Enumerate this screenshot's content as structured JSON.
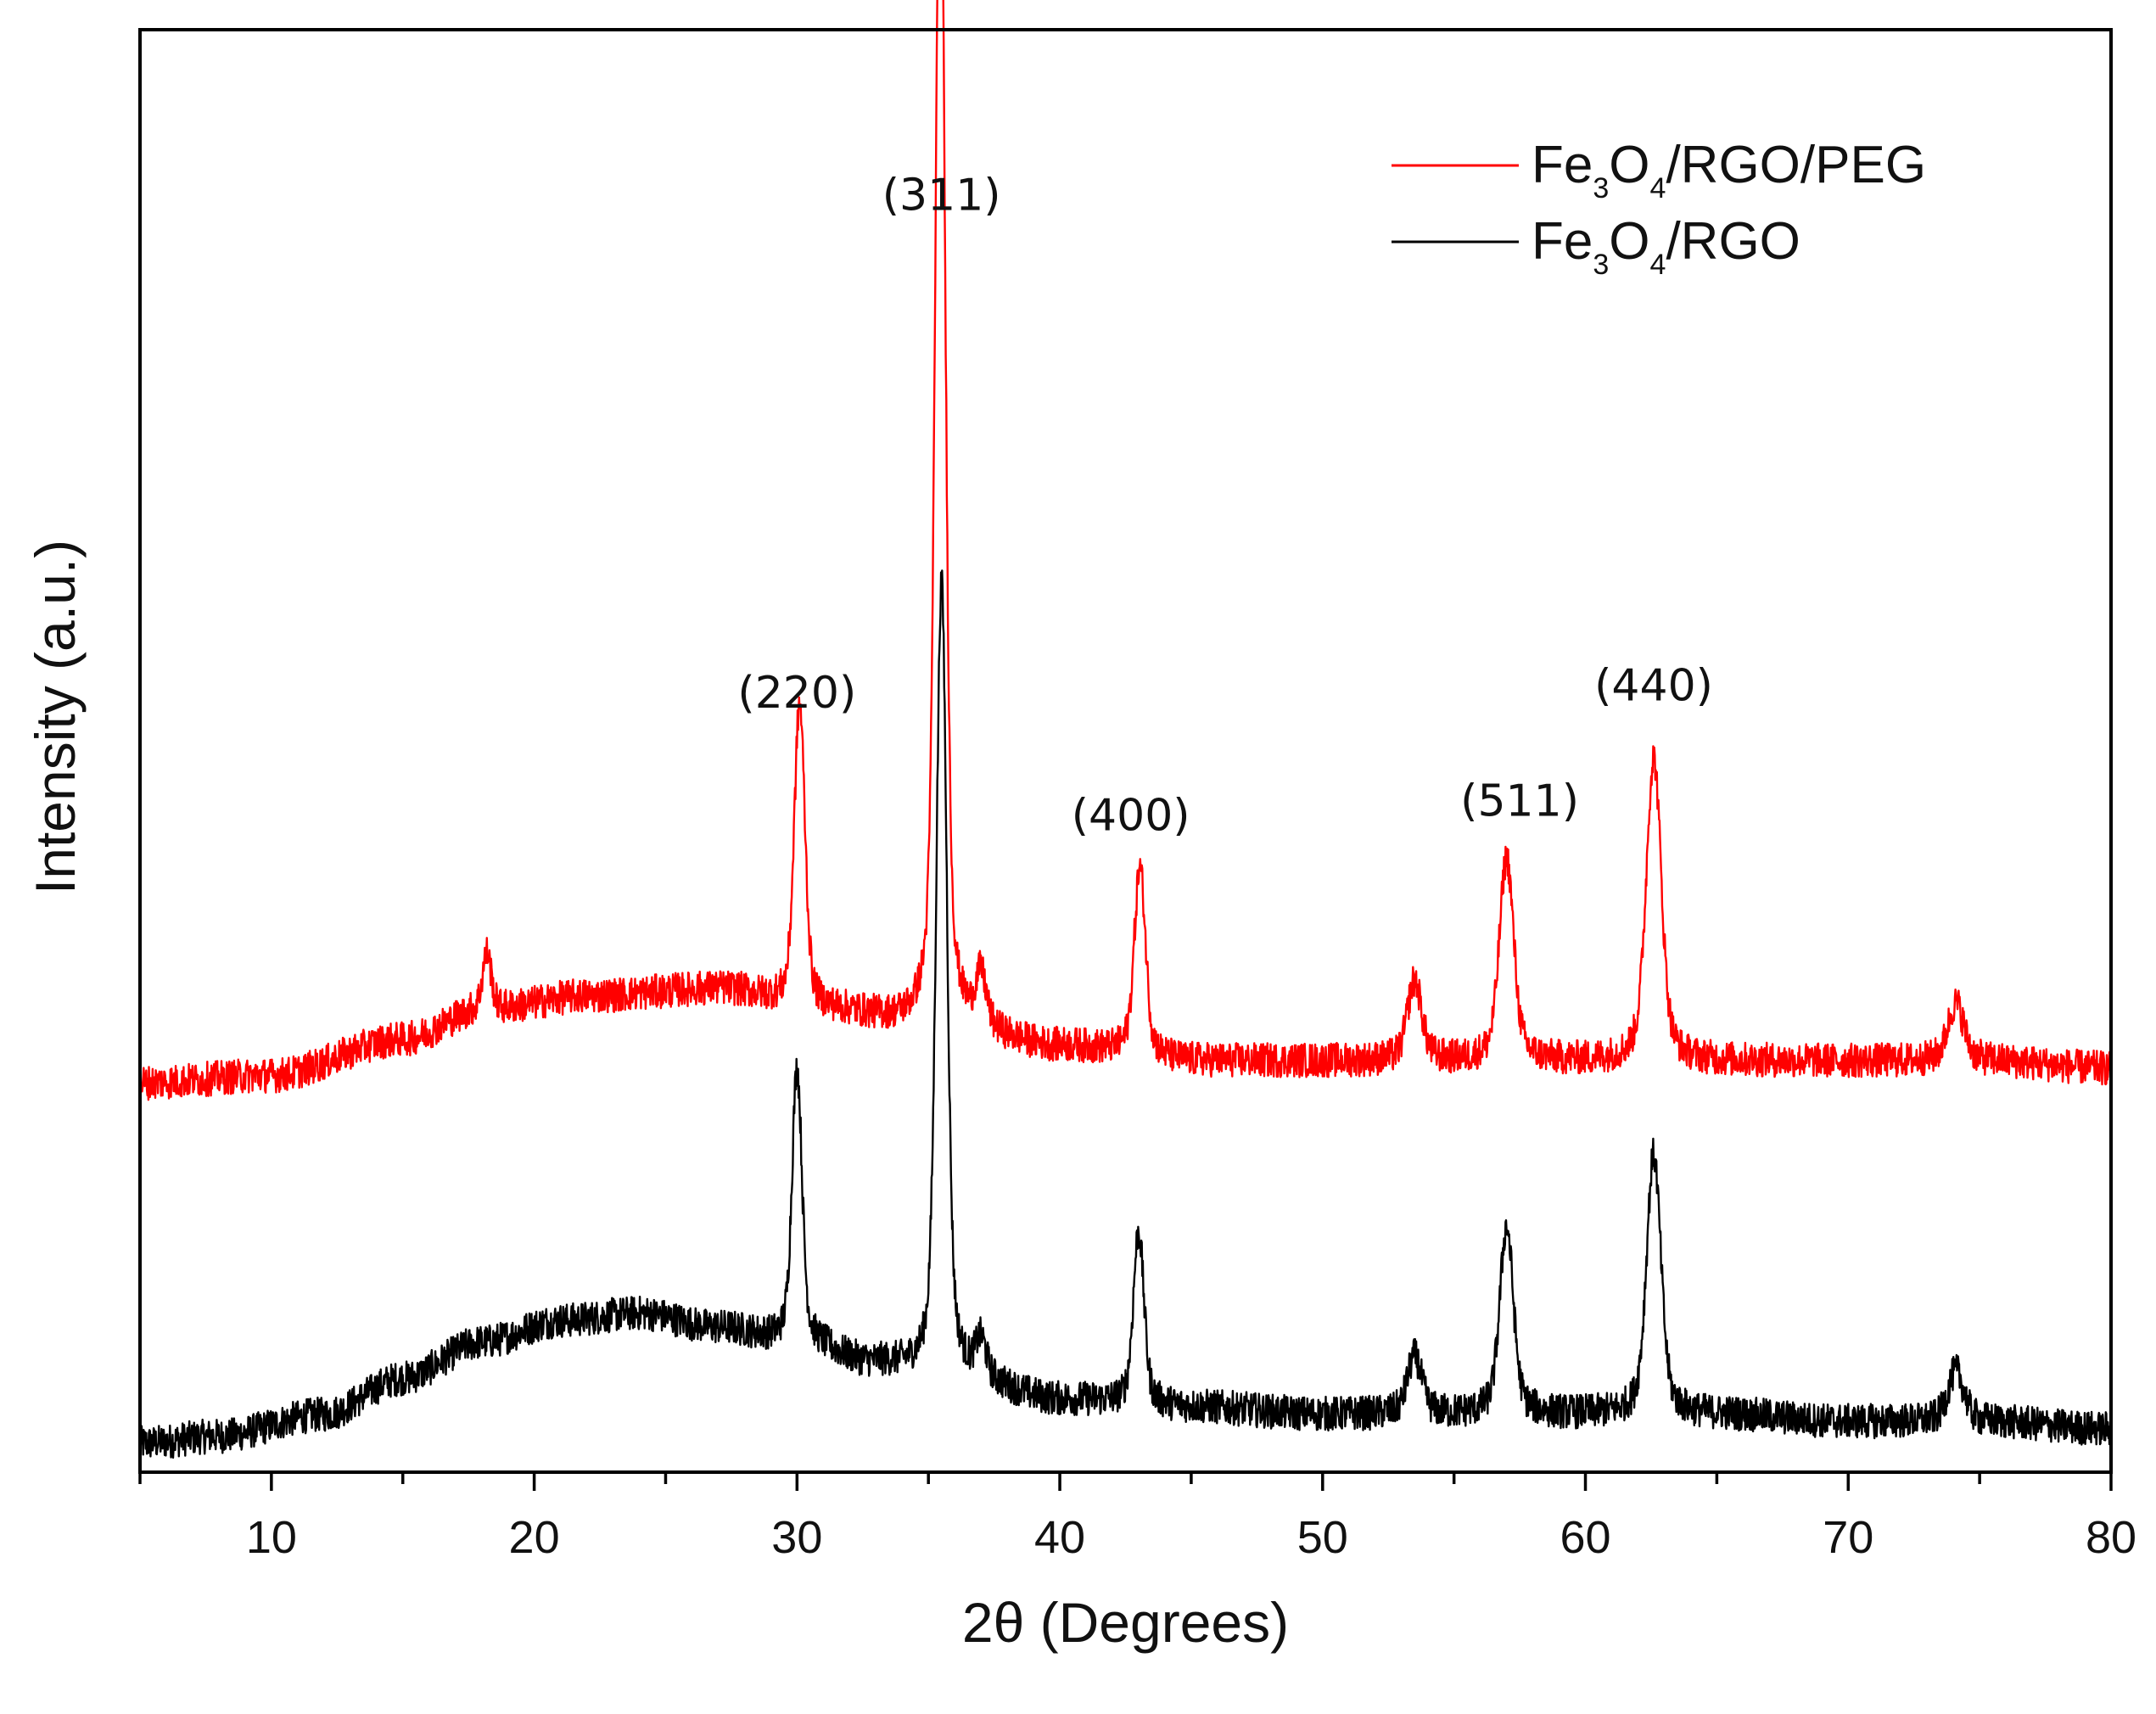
{
  "chart_data": {
    "type": "line",
    "title": "",
    "xlabel": "2θ (Degrees)",
    "ylabel": "Intensity (a.u.)",
    "xlim": [
      5,
      80
    ],
    "ylim": [
      0,
      1
    ],
    "x_ticks": [
      10,
      20,
      30,
      40,
      50,
      60,
      70,
      80
    ],
    "y_ticks_visible": false,
    "grid": false,
    "legend_position": "top-right",
    "series": [
      {
        "name": "Fe3O4/RGO/PEG",
        "legend": {
          "base": "Fe",
          "sub1": "3",
          "mid": "O",
          "sub2": "4",
          "rest": "/RGO/PEG"
        },
        "color": "#ff0000",
        "baseline_points": [
          [
            5,
            0.27
          ],
          [
            10,
            0.275
          ],
          [
            15,
            0.3
          ],
          [
            18,
            0.32
          ],
          [
            22,
            0.33
          ],
          [
            27,
            0.335
          ],
          [
            31,
            0.32
          ],
          [
            35,
            0.31
          ],
          [
            40,
            0.295
          ],
          [
            45,
            0.285
          ],
          [
            50,
            0.285
          ],
          [
            55,
            0.285
          ],
          [
            60,
            0.285
          ],
          [
            65,
            0.285
          ],
          [
            70,
            0.285
          ],
          [
            75,
            0.285
          ],
          [
            80,
            0.28
          ]
        ],
        "peaks": [
          {
            "x": 18.2,
            "height": 0.04,
            "width": 0.25
          },
          {
            "x": 30.1,
            "height": 0.21,
            "width": 0.3
          },
          {
            "x": 35.45,
            "height": 0.85,
            "width": 0.28
          },
          {
            "x": 37.0,
            "height": 0.035,
            "width": 0.3
          },
          {
            "x": 43.05,
            "height": 0.13,
            "width": 0.32
          },
          {
            "x": 53.5,
            "height": 0.055,
            "width": 0.4
          },
          {
            "x": 57.0,
            "height": 0.14,
            "width": 0.4
          },
          {
            "x": 62.6,
            "height": 0.21,
            "width": 0.42
          },
          {
            "x": 74.1,
            "height": 0.04,
            "width": 0.45
          }
        ],
        "noise_amplitude": 0.012
      },
      {
        "name": "Fe3O4/RGO",
        "legend": {
          "base": "Fe",
          "sub1": "3",
          "mid": "O",
          "sub2": "4",
          "rest": "/RGO"
        },
        "color": "#000000",
        "baseline_points": [
          [
            5,
            0.02
          ],
          [
            8,
            0.025
          ],
          [
            12,
            0.04
          ],
          [
            15,
            0.065
          ],
          [
            18,
            0.09
          ],
          [
            21,
            0.105
          ],
          [
            24,
            0.11
          ],
          [
            27,
            0.1
          ],
          [
            30,
            0.09
          ],
          [
            33,
            0.075
          ],
          [
            36,
            0.065
          ],
          [
            40,
            0.05
          ],
          [
            45,
            0.045
          ],
          [
            50,
            0.04
          ],
          [
            55,
            0.04
          ],
          [
            60,
            0.04
          ],
          [
            65,
            0.04
          ],
          [
            70,
            0.035
          ],
          [
            75,
            0.035
          ],
          [
            80,
            0.03
          ]
        ],
        "peaks": [
          {
            "x": 30.0,
            "height": 0.19,
            "width": 0.28
          },
          {
            "x": 35.5,
            "height": 0.55,
            "width": 0.3
          },
          {
            "x": 37.0,
            "height": 0.025,
            "width": 0.3
          },
          {
            "x": 43.0,
            "height": 0.12,
            "width": 0.3
          },
          {
            "x": 53.5,
            "height": 0.04,
            "width": 0.4
          },
          {
            "x": 57.0,
            "height": 0.13,
            "width": 0.38
          },
          {
            "x": 62.6,
            "height": 0.18,
            "width": 0.4
          },
          {
            "x": 74.1,
            "height": 0.035,
            "width": 0.45
          }
        ],
        "noise_amplitude": 0.012
      }
    ],
    "annotations": [
      {
        "text": "(220)",
        "x": 30.0,
        "y": 0.53
      },
      {
        "text": "(311)",
        "x": 35.5,
        "y": 0.875
      },
      {
        "text": "(400)",
        "x": 42.7,
        "y": 0.445
      },
      {
        "text": "(511)",
        "x": 57.5,
        "y": 0.455
      },
      {
        "text": "(440)",
        "x": 62.6,
        "y": 0.535
      }
    ]
  }
}
